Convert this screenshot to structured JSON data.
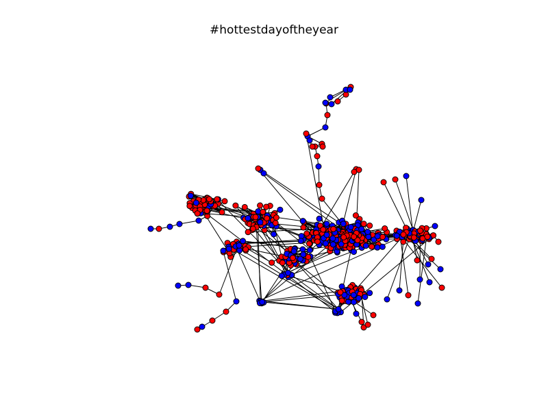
{
  "figure": {
    "title": "#hottestdayoftheyear"
  },
  "legend": {
    "red_label": "",
    "blue_label": ""
  },
  "colors": {
    "background": "#ffffff",
    "node_red": "#ff0000",
    "node_blue": "#0000ff",
    "node_outline": "#000000",
    "edge": "#000000"
  },
  "graph": {
    "type": "network",
    "layout": "force-directed",
    "node_colors": [
      "red",
      "blue"
    ],
    "approx_node_count": 800,
    "axes_visible": false
  }
}
